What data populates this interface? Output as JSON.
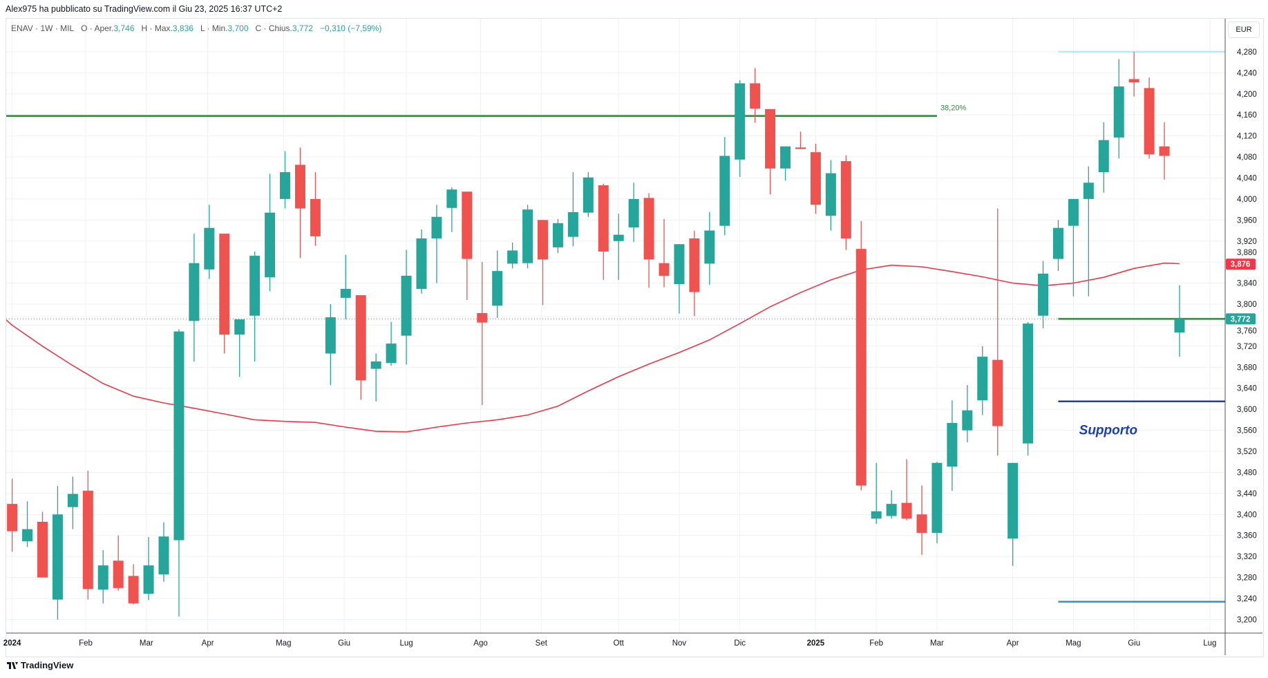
{
  "header": {
    "published": "Alex975 ha pubblicato su TradingView.com il Giu 23, 2025 16:37 UTC+2"
  },
  "legend": {
    "symbol": "ENAV · 1W · MIL",
    "o_label": "O · Aper.",
    "open": "3,746",
    "h_label": "H · Max.",
    "high": "3,836",
    "l_label": "L · Min.",
    "low": "3,700",
    "c_label": "C · Chius.",
    "close": "3,772",
    "change": "−0,310 (−7,59%)"
  },
  "currency": "EUR",
  "branding": "TradingView",
  "colors": {
    "up": "#26a69a",
    "down": "#ef5350",
    "ma": "#f23645",
    "fib": "#2e8b3a",
    "support": "#1a3fb5",
    "top": "#b2ebf2",
    "bottom": "#2196d3"
  },
  "chart_data": {
    "type": "candlestick",
    "title": "ENAV 1W MIL",
    "ylim": [
      3.18,
      4.3
    ],
    "yticks": [
      "4,280",
      "4,240",
      "4,200",
      "4,160",
      "4,120",
      "4,080",
      "4,040",
      "4,000",
      "3,960",
      "3,920",
      "3,880",
      "3,840",
      "3,800",
      "3,760",
      "3,720",
      "3,680",
      "3,640",
      "3,600",
      "3,560",
      "3,520",
      "3,480",
      "3,440",
      "3,400",
      "3,360",
      "3,320",
      "3,280",
      "3,240",
      "3,200"
    ],
    "ytick_values": [
      4.28,
      4.24,
      4.2,
      4.16,
      4.12,
      4.08,
      4.04,
      4.0,
      3.96,
      3.92,
      3.88,
      3.84,
      3.8,
      3.76,
      3.72,
      3.68,
      3.64,
      3.6,
      3.56,
      3.52,
      3.48,
      3.44,
      3.4,
      3.36,
      3.32,
      3.28,
      3.24,
      3.2
    ],
    "xticks": [
      {
        "label": "2024",
        "week": 0,
        "bold": true
      },
      {
        "label": "Feb",
        "week": 4.85
      },
      {
        "label": "Mar",
        "week": 8.85
      },
      {
        "label": "Apr",
        "week": 12.9
      },
      {
        "label": "Mag",
        "week": 17.9
      },
      {
        "label": "Giu",
        "week": 21.9
      },
      {
        "label": "Lug",
        "week": 26
      },
      {
        "label": "Ago",
        "week": 30.9
      },
      {
        "label": "Set",
        "week": 34.9
      },
      {
        "label": "Ott",
        "week": 40
      },
      {
        "label": "Nov",
        "week": 44
      },
      {
        "label": "Dic",
        "week": 48
      },
      {
        "label": "2025",
        "week": 53,
        "bold": true
      },
      {
        "label": "Feb",
        "week": 57
      },
      {
        "label": "Mar",
        "week": 61
      },
      {
        "label": "Apr",
        "week": 66
      },
      {
        "label": "Mag",
        "week": 70
      },
      {
        "label": "Giu",
        "week": 74
      },
      {
        "label": "Lug",
        "week": 79
      }
    ],
    "candles_ohlc": [
      [
        3.42,
        3.468,
        3.329,
        3.368
      ],
      [
        3.349,
        3.425,
        3.338,
        3.372
      ],
      [
        3.386,
        3.405,
        3.28,
        3.28
      ],
      [
        3.238,
        3.454,
        3.2,
        3.4
      ],
      [
        3.414,
        3.472,
        3.372,
        3.439
      ],
      [
        3.445,
        3.483,
        3.238,
        3.258
      ],
      [
        3.257,
        3.332,
        3.231,
        3.303
      ],
      [
        3.312,
        3.36,
        3.255,
        3.26
      ],
      [
        3.283,
        3.305,
        3.229,
        3.231
      ],
      [
        3.249,
        3.357,
        3.237,
        3.303
      ],
      [
        3.286,
        3.385,
        3.272,
        3.358
      ],
      [
        3.351,
        3.752,
        3.206,
        3.748
      ],
      [
        3.768,
        3.934,
        3.691,
        3.878
      ],
      [
        3.866,
        3.989,
        3.848,
        3.945
      ],
      [
        3.934,
        3.934,
        3.706,
        3.742
      ],
      [
        3.742,
        3.771,
        3.662,
        3.771
      ],
      [
        3.778,
        3.9,
        3.691,
        3.892
      ],
      [
        3.851,
        4.048,
        3.825,
        3.974
      ],
      [
        4.0,
        4.091,
        3.982,
        4.051
      ],
      [
        4.065,
        4.098,
        3.888,
        3.982
      ],
      [
        4.0,
        4.051,
        3.911,
        3.929
      ],
      [
        3.706,
        3.8,
        3.646,
        3.775
      ],
      [
        3.812,
        3.894,
        3.771,
        3.829
      ],
      [
        3.817,
        3.817,
        3.618,
        3.655
      ],
      [
        3.677,
        3.706,
        3.615,
        3.691
      ],
      [
        3.688,
        3.766,
        3.683,
        3.725
      ],
      [
        3.74,
        3.903,
        3.685,
        3.854
      ],
      [
        3.829,
        3.942,
        3.82,
        3.925
      ],
      [
        3.925,
        3.989,
        3.84,
        3.966
      ],
      [
        3.983,
        4.022,
        3.937,
        4.018
      ],
      [
        4.014,
        4.014,
        3.808,
        3.886
      ],
      [
        3.783,
        3.88,
        3.608,
        3.765
      ],
      [
        3.797,
        3.902,
        3.774,
        3.863
      ],
      [
        3.877,
        3.917,
        3.868,
        3.902
      ],
      [
        3.878,
        3.989,
        3.868,
        3.98
      ],
      [
        3.96,
        3.96,
        3.798,
        3.885
      ],
      [
        3.908,
        3.962,
        3.897,
        3.954
      ],
      [
        3.928,
        4.051,
        3.91,
        3.975
      ],
      [
        3.974,
        4.051,
        3.966,
        4.041
      ],
      [
        4.026,
        4.029,
        3.846,
        3.9
      ],
      [
        3.92,
        3.972,
        3.846,
        3.932
      ],
      [
        3.946,
        4.031,
        3.918,
        4.0
      ],
      [
        4.002,
        4.011,
        3.831,
        3.885
      ],
      [
        3.878,
        3.962,
        3.832,
        3.854
      ],
      [
        3.838,
        3.914,
        3.782,
        3.914
      ],
      [
        3.925,
        3.94,
        3.777,
        3.823
      ],
      [
        3.877,
        3.975,
        3.837,
        3.94
      ],
      [
        3.949,
        4.118,
        3.931,
        4.082
      ],
      [
        4.075,
        4.226,
        4.042,
        4.22
      ],
      [
        4.22,
        4.249,
        4.145,
        4.172
      ],
      [
        4.171,
        4.171,
        4.009,
        4.058
      ],
      [
        4.058,
        4.1,
        4.035,
        4.1
      ],
      [
        4.098,
        4.128,
        4.095,
        4.095
      ],
      [
        4.089,
        4.105,
        3.972,
        3.989
      ],
      [
        3.968,
        4.074,
        3.94,
        4.049
      ],
      [
        4.072,
        4.083,
        3.903,
        3.925
      ],
      [
        3.905,
        3.958,
        3.446,
        3.455
      ],
      [
        3.392,
        3.498,
        3.382,
        3.406
      ],
      [
        3.397,
        3.446,
        3.392,
        3.42
      ],
      [
        3.422,
        3.505,
        3.389,
        3.392
      ],
      [
        3.4,
        3.455,
        3.323,
        3.365
      ],
      [
        3.365,
        3.5,
        3.345,
        3.498
      ],
      [
        3.491,
        3.617,
        3.445,
        3.574
      ],
      [
        3.56,
        3.646,
        3.537,
        3.598
      ],
      [
        3.617,
        3.72,
        3.589,
        3.7
      ],
      [
        3.694,
        3.982,
        3.512,
        3.568
      ],
      [
        3.354,
        3.498,
        3.302,
        3.498
      ],
      [
        3.535,
        3.766,
        3.512,
        3.763
      ],
      [
        3.778,
        3.882,
        3.754,
        3.858
      ],
      [
        3.886,
        3.96,
        3.863,
        3.945
      ],
      [
        3.949,
        4.0,
        3.815,
        4.0
      ],
      [
        4.0,
        4.062,
        3.815,
        4.031
      ],
      [
        4.051,
        4.146,
        4.012,
        4.112
      ],
      [
        4.117,
        4.266,
        4.077,
        4.214
      ],
      [
        4.228,
        4.28,
        4.195,
        4.222
      ],
      [
        4.211,
        4.231,
        4.077,
        4.085
      ],
      [
        4.1,
        4.146,
        4.037,
        4.082
      ],
      [
        3.746,
        3.836,
        3.7,
        3.772
      ]
    ],
    "moving_average": [
      [
        0,
        3.76
      ],
      [
        2,
        3.72
      ],
      [
        4,
        3.683
      ],
      [
        6,
        3.649
      ],
      [
        8,
        3.625
      ],
      [
        10,
        3.612
      ],
      [
        12,
        3.602
      ],
      [
        14,
        3.591
      ],
      [
        16,
        3.58
      ],
      [
        18,
        3.577
      ],
      [
        20,
        3.575
      ],
      [
        22,
        3.566
      ],
      [
        24,
        3.558
      ],
      [
        26,
        3.557
      ],
      [
        28,
        3.566
      ],
      [
        30,
        3.574
      ],
      [
        32,
        3.58
      ],
      [
        34,
        3.589
      ],
      [
        36,
        3.606
      ],
      [
        38,
        3.635
      ],
      [
        40,
        3.662
      ],
      [
        42,
        3.686
      ],
      [
        44,
        3.708
      ],
      [
        46,
        3.732
      ],
      [
        48,
        3.763
      ],
      [
        50,
        3.795
      ],
      [
        52,
        3.822
      ],
      [
        54,
        3.846
      ],
      [
        56,
        3.865
      ],
      [
        58,
        3.874
      ],
      [
        60,
        3.871
      ],
      [
        62,
        3.862
      ],
      [
        64,
        3.852
      ],
      [
        66,
        3.84
      ],
      [
        68,
        3.835
      ],
      [
        70,
        3.84
      ],
      [
        72,
        3.851
      ],
      [
        74,
        3.868
      ],
      [
        76,
        3.878
      ],
      [
        77,
        3.877
      ]
    ],
    "ma_last_label": "3,876",
    "last_price_label": "3,772",
    "last_price": 3.772,
    "levels": [
      {
        "name": "fib-38-2",
        "price": 4.158,
        "from_week": -0.4,
        "to_week": 61,
        "label": "38,20%",
        "color_key": "fib"
      },
      {
        "name": "resistance-top",
        "price": 4.28,
        "from_week": 69,
        "to_week": null,
        "color_key": "top"
      },
      {
        "name": "current-level",
        "price": 3.772,
        "from_week": 69,
        "to_week": null,
        "color_key": "fib"
      },
      {
        "name": "support",
        "price": 3.615,
        "from_week": 69,
        "to_week": null,
        "color_key": "support"
      },
      {
        "name": "bottom-level",
        "price": 3.234,
        "from_week": 69,
        "to_week": null,
        "color_key": "bottom"
      }
    ],
    "annotation": {
      "text": "Supporto",
      "week": 72.3,
      "price": 3.56
    }
  }
}
